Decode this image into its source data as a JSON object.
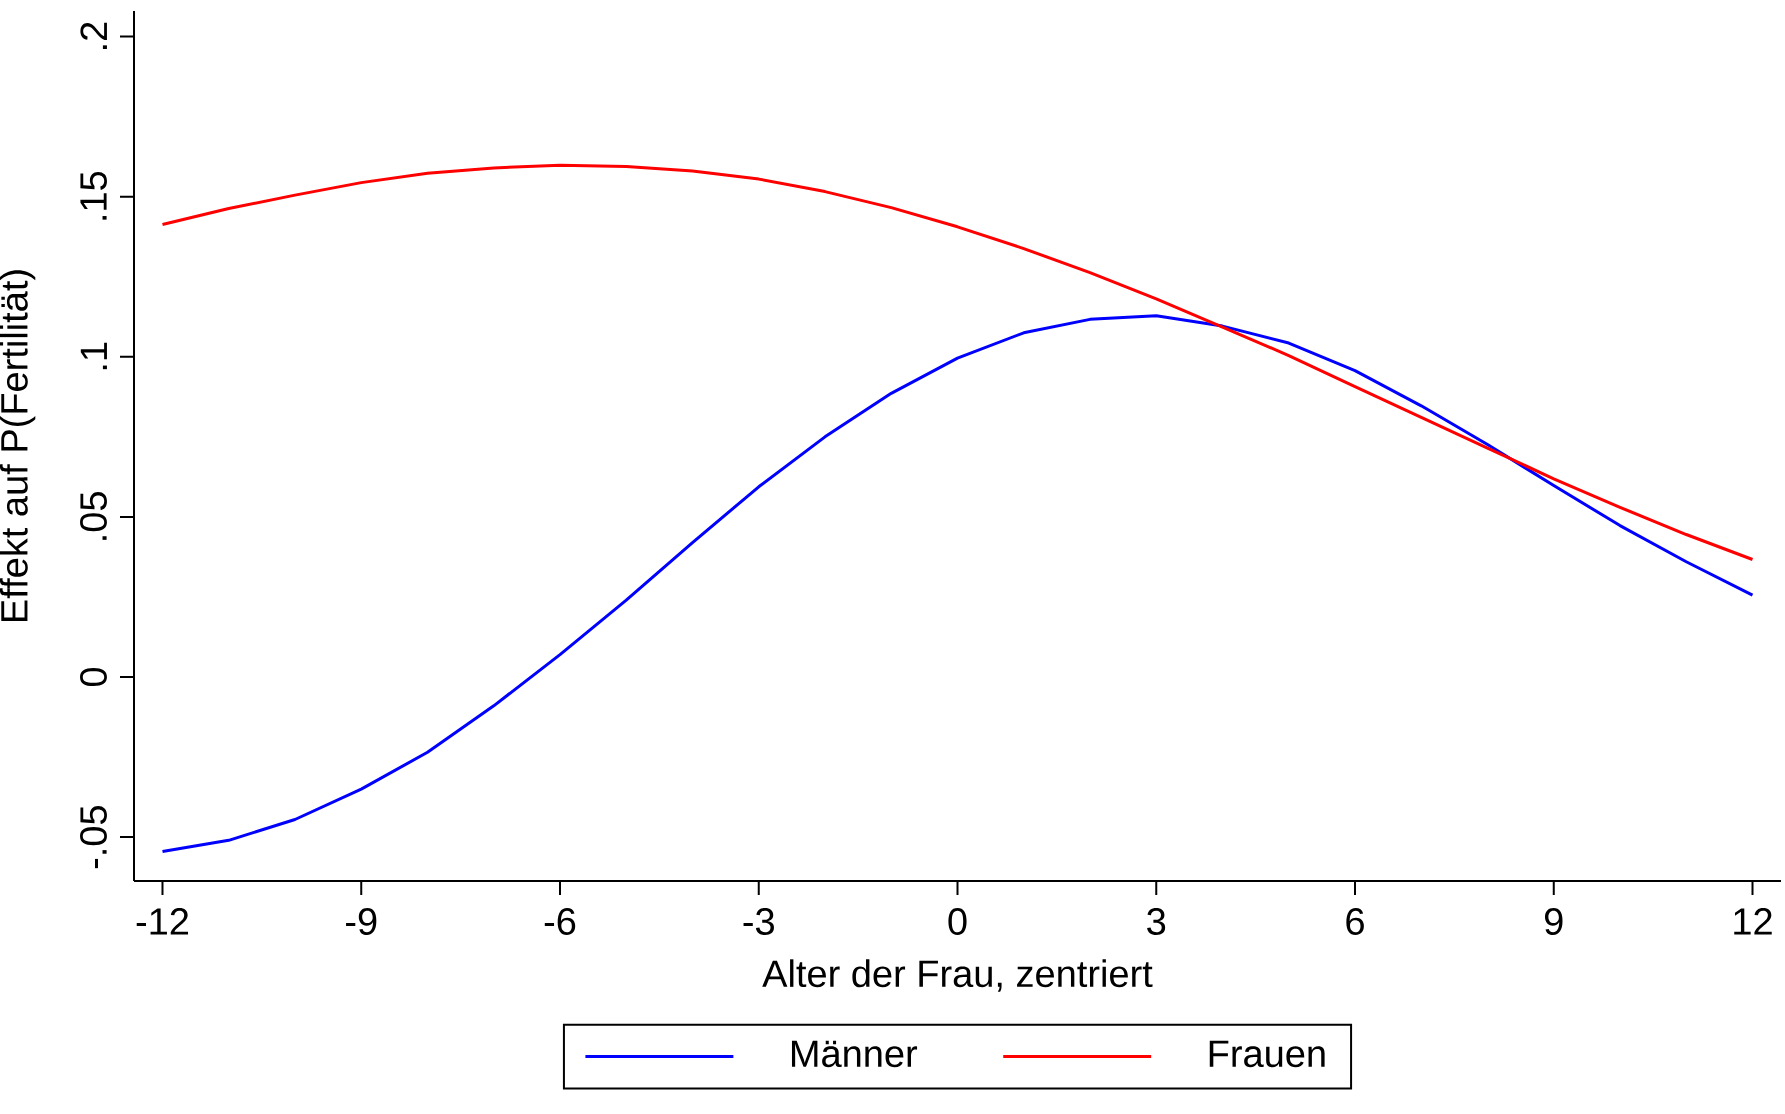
{
  "chart_data": {
    "type": "line",
    "xlabel": "Alter der Frau, zentriert",
    "ylabel": "Effekt auf P(Fertilität)",
    "x": [
      -12,
      -11,
      -10,
      -9,
      -8,
      -7,
      -6,
      -5,
      -4,
      -3,
      -2,
      -1,
      0,
      1,
      2,
      3,
      4,
      5,
      6,
      7,
      8,
      9,
      10,
      11,
      12
    ],
    "series": [
      {
        "name": "Männer",
        "color": "#0000ff",
        "values": [
          -0.0545,
          -0.051,
          -0.0445,
          -0.035,
          -0.0235,
          -0.009,
          0.007,
          0.024,
          0.042,
          0.0594,
          0.075,
          0.0886,
          0.0996,
          0.1075,
          0.1117,
          0.1128,
          0.1096,
          0.1043,
          0.0957,
          0.0847,
          0.0726,
          0.0598,
          0.0473,
          0.036,
          0.0256
        ]
      },
      {
        "name": "Frauen",
        "color": "#ff0000",
        "values": [
          0.1413,
          0.1463,
          0.1505,
          0.1544,
          0.1573,
          0.159,
          0.1598,
          0.1594,
          0.158,
          0.1555,
          0.1516,
          0.1466,
          0.1406,
          0.1338,
          0.1263,
          0.1181,
          0.1093,
          0.1004,
          0.0907,
          0.0811,
          0.0715,
          0.0619,
          0.053,
          0.0445,
          0.0367
        ]
      }
    ],
    "xlim": [
      -12.43,
      12.43
    ],
    "ylim": [
      -0.0637,
      0.208
    ],
    "xticks": [
      -12,
      -9,
      -6,
      -3,
      0,
      3,
      6,
      9,
      12
    ],
    "yticks": [
      {
        "value": -0.05,
        "label": "-.05"
      },
      0,
      {
        "value": 0.05,
        "label": ".05"
      },
      {
        "value": 0.1,
        "label": ".1"
      },
      {
        "value": 0.15,
        "label": ".15"
      },
      {
        "value": 0.2,
        "label": ".2"
      }
    ],
    "legend": "bottom"
  }
}
